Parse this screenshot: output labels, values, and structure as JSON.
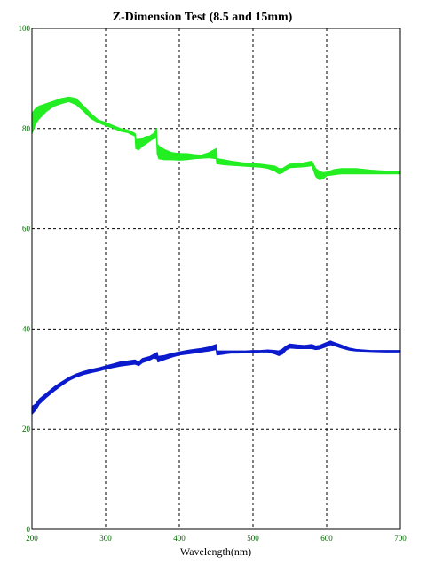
{
  "chart_data": {
    "type": "line",
    "title": "Z-Dimension Test (8.5 and 15mm)",
    "xlabel": "Wavelength(nm)",
    "ylabel": "",
    "xlim": [
      200,
      700
    ],
    "ylim": [
      0,
      100
    ],
    "grid": true,
    "grid_style": "dashed",
    "legend": "none",
    "x_ticks": [
      200,
      300,
      400,
      500,
      600,
      700
    ],
    "y_ticks": [
      0,
      20,
      40,
      60,
      80,
      100
    ],
    "x_tick_labels": [
      "200",
      "300",
      "400",
      "500",
      "600",
      "700"
    ],
    "y_tick_labels": [
      "0",
      "20",
      "40",
      "60",
      "80",
      "100"
    ],
    "colors": {
      "grid": "#000000",
      "tick_text": "#006400",
      "frame": "#000000"
    },
    "series": [
      {
        "color": "#22ee22",
        "band": true,
        "x": [
          200,
          205,
          210,
          220,
          230,
          240,
          250,
          260,
          270,
          280,
          290,
          300,
          310,
          320,
          330,
          340,
          341,
          345,
          350,
          355,
          360,
          365,
          369,
          370,
          372,
          380,
          390,
          400,
          410,
          420,
          430,
          440,
          450,
          451,
          460,
          470,
          480,
          490,
          500,
          510,
          520,
          530,
          535,
          540,
          545,
          550,
          560,
          570,
          580,
          585,
          590,
          595,
          600,
          610,
          620,
          640,
          660,
          680,
          700
        ],
        "upper": [
          83,
          84,
          84.5,
          85,
          85.5,
          86,
          86.3,
          86,
          84.5,
          83,
          81.7,
          81.2,
          80.6,
          80,
          79.7,
          79,
          78,
          78,
          78.1,
          78.4,
          78.5,
          79,
          80,
          77,
          76.5,
          75.8,
          75.2,
          75,
          75,
          74.8,
          74.7,
          75.2,
          76,
          74,
          73.8,
          73.5,
          73.3,
          73.1,
          73,
          72.9,
          72.7,
          72.5,
          72,
          72,
          72.5,
          72.9,
          73,
          73.2,
          73.5,
          72,
          71.5,
          71.2,
          71.3,
          71.8,
          72,
          72,
          71.7,
          71.5,
          71.5
        ],
        "lower": [
          79,
          81,
          82,
          83.5,
          84.5,
          85,
          85.4,
          84.8,
          83.5,
          82,
          81.2,
          80.6,
          80.1,
          79.5,
          79.2,
          78.5,
          76,
          75.8,
          76.5,
          77,
          77.5,
          78,
          78.5,
          75,
          74,
          73.8,
          73.8,
          73.7,
          73.8,
          74,
          74.1,
          74.2,
          74,
          73,
          72.8,
          72.7,
          72.6,
          72.5,
          72.4,
          72.3,
          72.1,
          71.5,
          71,
          71.2,
          71.8,
          72.2,
          72.3,
          72.4,
          72.6,
          70.5,
          69.8,
          70,
          70.6,
          70.8,
          71,
          71,
          71,
          71,
          71
        ]
      },
      {
        "color": "#0a1acc",
        "band": true,
        "x": [
          200,
          205,
          210,
          220,
          230,
          240,
          250,
          260,
          270,
          280,
          290,
          300,
          310,
          320,
          330,
          340,
          345,
          350,
          360,
          365,
          370,
          371,
          380,
          390,
          400,
          410,
          420,
          430,
          440,
          450,
          451,
          460,
          470,
          480,
          490,
          500,
          510,
          520,
          530,
          535,
          540,
          545,
          550,
          560,
          570,
          580,
          585,
          590,
          600,
          605,
          610,
          620,
          630,
          640,
          660,
          680,
          700
        ],
        "upper": [
          24.5,
          25,
          26,
          27.2,
          28.4,
          29.4,
          30.3,
          31,
          31.5,
          31.9,
          32.2,
          32.6,
          33,
          33.4,
          33.6,
          33.8,
          33.4,
          34.1,
          34.5,
          34.9,
          35.3,
          34.5,
          34.7,
          35.1,
          35.4,
          35.7,
          35.9,
          36.1,
          36.4,
          36.9,
          35.6,
          35.6,
          35.6,
          35.6,
          35.6,
          35.7,
          35.7,
          35.8,
          35.7,
          35.6,
          36,
          36.6,
          37,
          36.8,
          36.7,
          36.9,
          36.6,
          36.7,
          37.3,
          37.6,
          37.3,
          36.8,
          36.2,
          35.9,
          35.7,
          35.7,
          35.7
        ],
        "lower": [
          23,
          23.8,
          25,
          26.4,
          27.6,
          28.7,
          29.7,
          30.4,
          30.9,
          31.3,
          31.6,
          32,
          32.3,
          32.6,
          32.8,
          33,
          32.7,
          33.3,
          33.8,
          34.2,
          34,
          33.4,
          33.9,
          34.4,
          34.8,
          35,
          35.2,
          35.4,
          35.6,
          35.9,
          34.8,
          35,
          35.2,
          35.2,
          35.3,
          35.3,
          35.4,
          35.4,
          35,
          34.7,
          35,
          35.8,
          36.2,
          36.1,
          36.1,
          36.1,
          35.9,
          36,
          36.5,
          36.9,
          36.7,
          36.2,
          35.8,
          35.6,
          35.5,
          35.4,
          35.4
        ]
      }
    ]
  }
}
